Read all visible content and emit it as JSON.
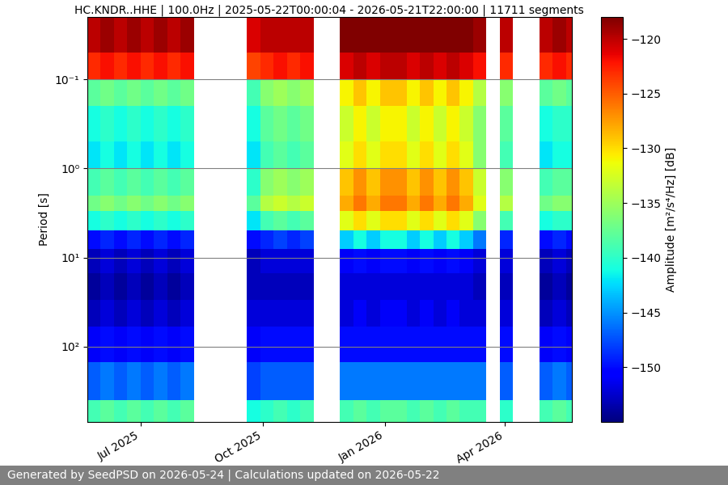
{
  "chart_data": {
    "type": "heatmap",
    "title": "HC.KNDR..HHE | 100.0Hz | 2025-05-22T00:00:04 - 2026-05-21T22:00:00 | 11711 segments",
    "ylabel": "Period [s]",
    "footer": "Generated by SeedPSD on 2026-05-24 | Calculations updated on 2026-05-22",
    "log": "y",
    "grid": true,
    "x_edges": [
      "2025-05-22",
      "2025-06-01",
      "2025-06-11",
      "2025-06-21",
      "2025-07-01",
      "2025-07-11",
      "2025-07-21",
      "2025-07-31",
      "2025-08-10",
      "2025-08-20",
      "2025-08-30",
      "2025-09-09",
      "2025-09-19",
      "2025-09-29",
      "2025-10-09",
      "2025-10-19",
      "2025-10-29",
      "2025-11-08",
      "2025-11-18",
      "2025-11-28",
      "2025-12-08",
      "2025-12-18",
      "2025-12-28",
      "2026-01-07",
      "2026-01-17",
      "2026-01-27",
      "2026-02-06",
      "2026-02-16",
      "2026-02-26",
      "2026-03-08",
      "2026-03-18",
      "2026-03-28",
      "2026-04-07",
      "2026-04-17",
      "2026-04-27",
      "2026-05-07",
      "2026-05-17",
      "2026-05-27"
    ],
    "y_edges": [
      0.02,
      0.05,
      0.1,
      0.2,
      0.5,
      1,
      2,
      3,
      5,
      8,
      15,
      30,
      60,
      150,
      400,
      700
    ],
    "cells": [
      [
        -120,
        -123,
        -138,
        -141,
        -142,
        -139,
        -137,
        -141,
        -150,
        -153,
        -154,
        -153,
        -151,
        -147,
        -139
      ],
      [
        -119,
        -122,
        -137,
        -140,
        -141,
        -138,
        -136,
        -140,
        -149,
        -152,
        -153,
        -152,
        -150,
        -146,
        -138
      ],
      [
        -120,
        -123,
        -138,
        -141,
        -142,
        -139,
        -137,
        -141,
        -150,
        -153,
        -154,
        -153,
        -151,
        -147,
        -139
      ],
      [
        -119,
        -122,
        -137,
        -140,
        -141,
        -138,
        -136,
        -140,
        -149,
        -152,
        -153,
        -152,
        -150,
        -146,
        -138
      ],
      [
        -120,
        -123,
        -138,
        -141,
        -142,
        -139,
        -137,
        -141,
        -150,
        -153,
        -154,
        -153,
        -151,
        -147,
        -139
      ],
      [
        -119,
        -122,
        -137,
        -140,
        -141,
        -138,
        -136,
        -140,
        -149,
        -152,
        -153,
        -152,
        -150,
        -146,
        -138
      ],
      [
        -120,
        -123,
        -138,
        -141,
        -142,
        -139,
        -137,
        -141,
        -150,
        -153,
        -154,
        -153,
        -151,
        -147,
        -139
      ],
      [
        -119,
        -122,
        -137,
        -140,
        -141,
        -138,
        -136,
        -140,
        -149,
        -152,
        -153,
        -152,
        -150,
        -146,
        -138
      ],
      [
        null,
        null,
        null,
        null,
        null,
        null,
        null,
        null,
        null,
        null,
        null,
        null,
        null,
        null,
        null
      ],
      [
        null,
        null,
        null,
        null,
        null,
        null,
        null,
        null,
        null,
        null,
        null,
        null,
        null,
        null,
        null
      ],
      [
        null,
        null,
        null,
        null,
        null,
        null,
        null,
        null,
        null,
        null,
        null,
        null,
        null,
        null,
        null
      ],
      [
        null,
        null,
        null,
        null,
        null,
        null,
        null,
        null,
        null,
        null,
        null,
        null,
        null,
        null,
        null
      ],
      [
        -121,
        -124,
        -139,
        -141,
        -142,
        -140,
        -138,
        -142,
        -150,
        -153,
        -153,
        -152,
        -151,
        -148,
        -141
      ],
      [
        -120,
        -123,
        -136,
        -138,
        -139,
        -136,
        -134,
        -139,
        -149,
        -152,
        -153,
        -152,
        -150,
        -147,
        -140
      ],
      [
        -120,
        -122,
        -135,
        -137,
        -138,
        -135,
        -133,
        -138,
        -148,
        -152,
        -153,
        -152,
        -150,
        -147,
        -139
      ],
      [
        -120,
        -123,
        -136,
        -138,
        -139,
        -136,
        -134,
        -139,
        -149,
        -152,
        -153,
        -152,
        -150,
        -147,
        -140
      ],
      [
        -120,
        -122,
        -135,
        -137,
        -138,
        -135,
        -133,
        -138,
        -148,
        -152,
        -153,
        -152,
        -150,
        -147,
        -139
      ],
      [
        null,
        null,
        null,
        null,
        null,
        null,
        null,
        null,
        null,
        null,
        null,
        null,
        null,
        null,
        null
      ],
      [
        null,
        null,
        null,
        null,
        null,
        null,
        null,
        null,
        null,
        null,
        null,
        null,
        null,
        null,
        null
      ],
      [
        -118,
        -121,
        -131,
        -133,
        -132,
        -129,
        -128,
        -132,
        -143,
        -151,
        -152,
        -152,
        -150,
        -146,
        -139
      ],
      [
        -118,
        -120,
        -129,
        -131,
        -130,
        -127,
        -126,
        -130,
        -141,
        -150,
        -152,
        -151,
        -150,
        -146,
        -138
      ],
      [
        -118,
        -121,
        -131,
        -133,
        -132,
        -129,
        -128,
        -132,
        -143,
        -151,
        -152,
        -152,
        -150,
        -146,
        -139
      ],
      [
        -118,
        -120,
        -129,
        -131,
        -130,
        -127,
        -126,
        -130,
        -141,
        -150,
        -152,
        -151,
        -150,
        -146,
        -138
      ],
      [
        -118,
        -120,
        -129,
        -131,
        -130,
        -127,
        -126,
        -130,
        -141,
        -150,
        -152,
        -151,
        -150,
        -146,
        -138
      ],
      [
        -118,
        -121,
        -131,
        -133,
        -132,
        -129,
        -128,
        -132,
        -143,
        -151,
        -152,
        -152,
        -150,
        -146,
        -139
      ],
      [
        -118,
        -120,
        -129,
        -131,
        -130,
        -127,
        -126,
        -130,
        -141,
        -150,
        -152,
        -151,
        -150,
        -146,
        -138
      ],
      [
        -118,
        -121,
        -131,
        -133,
        -132,
        -129,
        -128,
        -132,
        -143,
        -151,
        -152,
        -152,
        -150,
        -146,
        -139
      ],
      [
        -118,
        -120,
        -129,
        -131,
        -130,
        -127,
        -126,
        -130,
        -141,
        -150,
        -152,
        -151,
        -150,
        -146,
        -138
      ],
      [
        -118,
        -121,
        -131,
        -133,
        -132,
        -129,
        -128,
        -132,
        -143,
        -151,
        -152,
        -152,
        -150,
        -146,
        -139
      ],
      [
        -119,
        -122,
        -134,
        -136,
        -136,
        -133,
        -132,
        -136,
        -146,
        -152,
        -153,
        -152,
        -150,
        -146,
        -139
      ],
      [
        null,
        null,
        null,
        null,
        null,
        null,
        null,
        null,
        null,
        null,
        null,
        null,
        null,
        null,
        null
      ],
      [
        -120,
        -123,
        -136,
        -138,
        -139,
        -136,
        -134,
        -139,
        -149,
        -152,
        -153,
        -152,
        -150,
        -147,
        -140
      ],
      [
        null,
        null,
        null,
        null,
        null,
        null,
        null,
        null,
        null,
        null,
        null,
        null,
        null,
        null,
        null
      ],
      [
        null,
        null,
        null,
        null,
        null,
        null,
        null,
        null,
        null,
        null,
        null,
        null,
        null,
        null,
        null
      ],
      [
        -120,
        -123,
        -138,
        -141,
        -142,
        -139,
        -137,
        -141,
        -150,
        -153,
        -154,
        -153,
        -151,
        -147,
        -139
      ],
      [
        -119,
        -122,
        -137,
        -140,
        -141,
        -138,
        -136,
        -140,
        -149,
        -152,
        -153,
        -152,
        -150,
        -146,
        -138
      ],
      [
        -120,
        -123,
        -138,
        -140,
        -141,
        -138,
        -136,
        -140,
        -150,
        -153,
        -154,
        -153,
        -151,
        -147,
        -139
      ]
    ],
    "xlim": [
      "2025-05-22",
      "2026-05-21"
    ],
    "xticks": [
      {
        "value": "2025-07-01",
        "label": "Jul 2025"
      },
      {
        "value": "2025-10-01",
        "label": "Oct 2025"
      },
      {
        "value": "2026-01-01",
        "label": "Jan 2026"
      },
      {
        "value": "2026-04-01",
        "label": "Apr 2026"
      }
    ],
    "ylim": [
      700,
      0.02
    ],
    "yticks": [
      {
        "value": 0.1,
        "label": "10⁻¹"
      },
      {
        "value": 1,
        "label": "10⁰"
      },
      {
        "value": 10,
        "label": "10¹"
      },
      {
        "value": 100,
        "label": "10²"
      }
    ],
    "colorbar": {
      "label": "Amplitude [m²/s⁴/Hz] [dB]",
      "lim": [
        -155,
        -118
      ],
      "ticks": [
        {
          "value": -150,
          "label": "−150"
        },
        {
          "value": -145,
          "label": "−145"
        },
        {
          "value": -140,
          "label": "−140"
        },
        {
          "value": -135,
          "label": "−135"
        },
        {
          "value": -130,
          "label": "−130"
        },
        {
          "value": -125,
          "label": "−125"
        },
        {
          "value": -120,
          "label": "−120"
        }
      ]
    }
  }
}
